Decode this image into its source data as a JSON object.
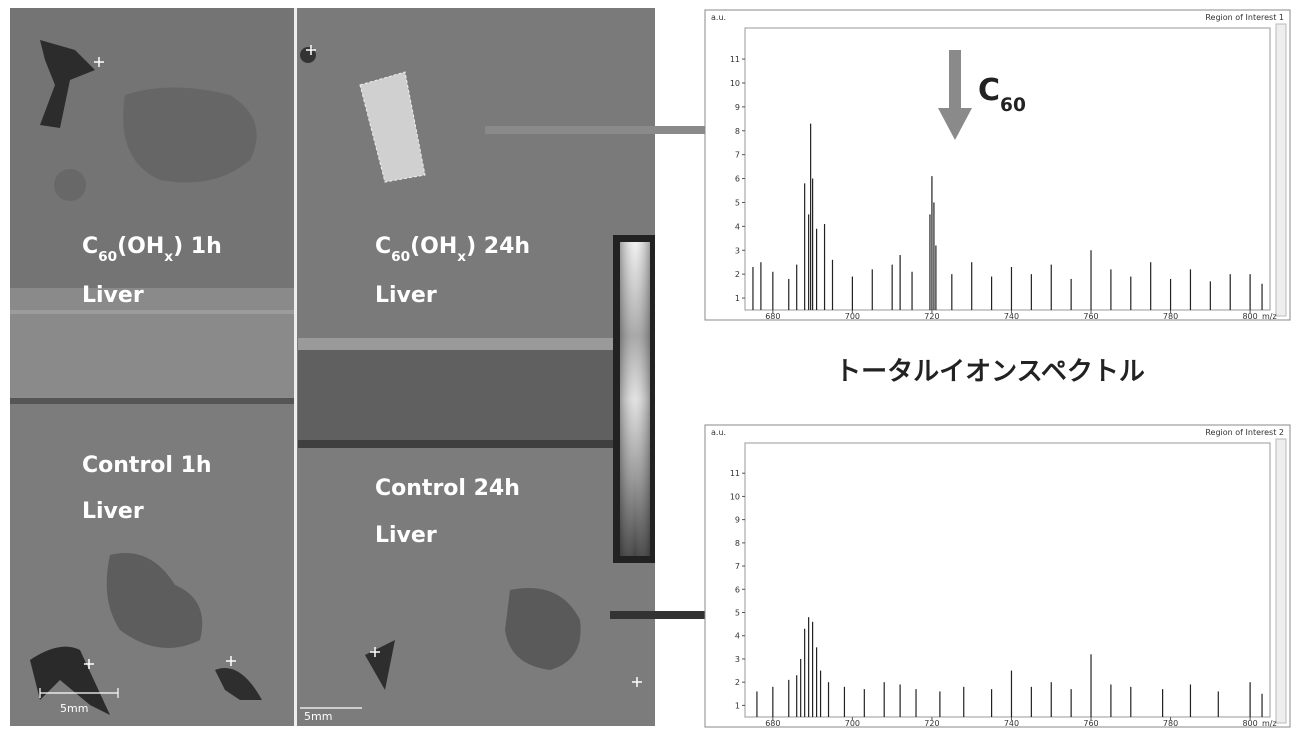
{
  "panels": [
    {
      "top_label": [
        {
          "text": "C",
          "sub": false
        },
        {
          "text": "60",
          "sub": true
        },
        {
          "text": "(OH",
          "sub": false
        },
        {
          "text": "x",
          "sub": true
        },
        {
          "text": ") 1h",
          "sub": false
        }
      ],
      "top_sublabel": "Liver",
      "bottom_label": "Control 1h",
      "bottom_sublabel": "Liver",
      "scale_bar": "5mm"
    },
    {
      "top_label": [
        {
          "text": "C",
          "sub": false
        },
        {
          "text": "60",
          "sub": true
        },
        {
          "text": "(OH",
          "sub": false
        },
        {
          "text": "x",
          "sub": true
        },
        {
          "text": ") 24h",
          "sub": false
        }
      ],
      "top_sublabel": "Liver",
      "bottom_label": "Control 24h",
      "bottom_sublabel": "Liver",
      "scale_bar": "5mm"
    }
  ],
  "annotation": [
    {
      "text": "C",
      "sub": false
    },
    {
      "text": "60",
      "sub": true
    }
  ],
  "caption": "トータルイオンスペクトル",
  "spectra": [
    {
      "y_label": "a.u.",
      "title": "Region of Interest 1",
      "x_label": "m/z",
      "xlim": [
        673,
        805
      ],
      "ylim": [
        0.5,
        12.3
      ],
      "xticks": [
        680,
        700,
        720,
        740,
        760,
        780,
        800
      ],
      "yticks": [
        1,
        2,
        3,
        4,
        5,
        6,
        7,
        8,
        9,
        10,
        11
      ],
      "peaks": {
        "mz": [
          675,
          677,
          680,
          684,
          686,
          688,
          689,
          689.5,
          690,
          691,
          693,
          695,
          700,
          705,
          710,
          712,
          715,
          719.5,
          720,
          720.5,
          721,
          725,
          730,
          735,
          740,
          745,
          750,
          755,
          760,
          765,
          770,
          775,
          780,
          785,
          790,
          795,
          800,
          803
        ],
        "intensity": [
          2.3,
          2.5,
          2.1,
          1.8,
          2.4,
          5.8,
          4.5,
          8.3,
          6,
          3.9,
          4.1,
          2.6,
          1.9,
          2.2,
          2.4,
          2.8,
          2.1,
          4.5,
          6.1,
          5,
          3.2,
          2,
          2.5,
          1.9,
          2.3,
          2,
          2.4,
          1.8,
          3,
          2.2,
          1.9,
          2.5,
          1.8,
          2.2,
          1.7,
          2,
          2,
          1.6
        ]
      }
    },
    {
      "y_label": "a.u.",
      "title": "Region of Interest 2",
      "x_label": "m/z",
      "xlim": [
        673,
        805
      ],
      "ylim": [
        0.5,
        12.3
      ],
      "xticks": [
        680,
        700,
        720,
        740,
        760,
        780,
        800
      ],
      "yticks": [
        1,
        2,
        3,
        4,
        5,
        6,
        7,
        8,
        9,
        10,
        11
      ],
      "peaks": {
        "mz": [
          676,
          680,
          684,
          686,
          687,
          688,
          689,
          690,
          691,
          692,
          694,
          698,
          703,
          708,
          712,
          716,
          722,
          728,
          735,
          740,
          745,
          750,
          755,
          760,
          765,
          770,
          778,
          785,
          792,
          800,
          803
        ],
        "intensity": [
          1.6,
          1.8,
          2.1,
          2.3,
          3,
          4.3,
          4.8,
          4.6,
          3.5,
          2.5,
          2,
          1.8,
          1.7,
          2,
          1.9,
          1.7,
          1.6,
          1.8,
          1.7,
          2.5,
          1.8,
          2,
          1.7,
          3.2,
          1.9,
          1.8,
          1.7,
          1.9,
          1.6,
          2,
          1.5
        ]
      }
    }
  ]
}
